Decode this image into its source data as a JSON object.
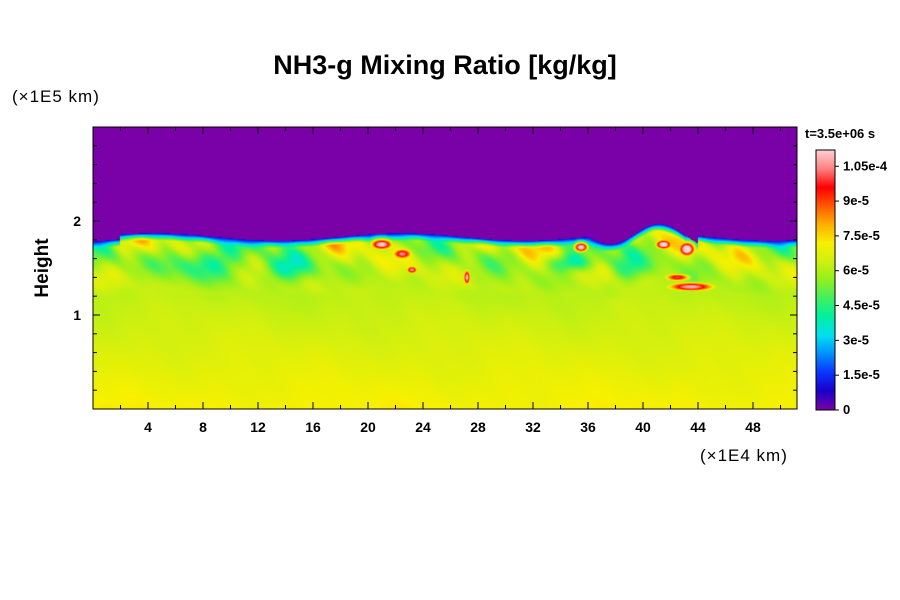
{
  "chart_data": {
    "type": "heatmap",
    "title": "NH3-g Mixing Ratio [kg/kg]",
    "ylabel": "Height",
    "y_unit": "(×1E5 km)",
    "x_unit": "(×1E4 km)",
    "time_label": "t=3.5e+06 s",
    "x_range": [
      0,
      51.2
    ],
    "y_range": [
      0,
      3.0
    ],
    "x_ticks": [
      "4",
      "8",
      "12",
      "16",
      "20",
      "24",
      "28",
      "32",
      "36",
      "40",
      "44",
      "48"
    ],
    "x_tick_values": [
      4,
      8,
      12,
      16,
      20,
      24,
      28,
      32,
      36,
      40,
      44,
      48
    ],
    "y_ticks": [
      "1",
      "2"
    ],
    "y_tick_values": [
      1,
      2
    ],
    "colorbar": {
      "min": 0,
      "max": 0.000112,
      "labels": [
        "1.05e-4",
        "9e-5",
        "7.5e-5",
        "6e-5",
        "4.5e-5",
        "3e-5",
        "1.5e-5",
        "0"
      ],
      "label_values": [
        0.000105,
        9e-05,
        7.5e-05,
        6e-05,
        4.5e-05,
        3e-05,
        1.5e-05,
        0
      ],
      "colors": [
        "#7a00a8",
        "#1a00c8",
        "#0a36ff",
        "#0090ff",
        "#00e0f0",
        "#00f0a0",
        "#40f060",
        "#90f020",
        "#d0f010",
        "#f8f000",
        "#ffb000",
        "#ff5a00",
        "#ff0000",
        "#ff8080",
        "#ffd0d0"
      ]
    },
    "field_description": {
      "background_value": 0,
      "cloud_top_height": 1.83,
      "surface_value": 7.2e-05,
      "midlayer_value": 6e-05,
      "hotspots_x": [
        21,
        23,
        27.2,
        35.5,
        41.5,
        43,
        43.5
      ]
    }
  }
}
